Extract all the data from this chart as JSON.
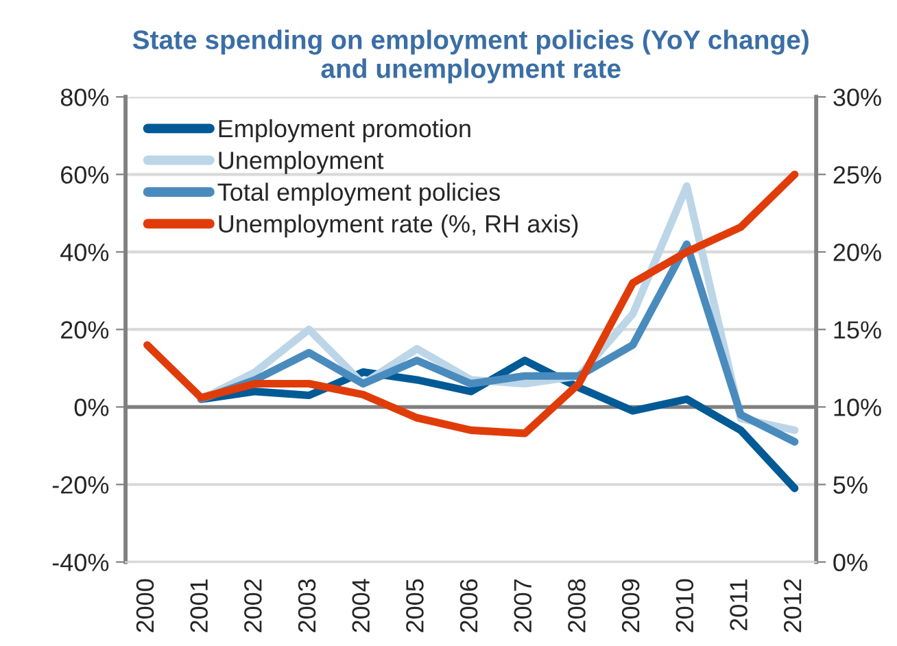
{
  "chart_data": {
    "type": "line",
    "title": "State spending on employment policies (YoY change)\nand unemployment rate",
    "categories": [
      "2000",
      "2001",
      "2002",
      "2003",
      "2004",
      "2005",
      "2006",
      "2007",
      "2008",
      "2009",
      "2010",
      "2011",
      "2012"
    ],
    "series": [
      {
        "name": "Employment promotion",
        "color": "#005a96",
        "values": [
          null,
          2,
          4,
          3,
          9,
          7,
          4,
          12,
          5,
          -1,
          2,
          -6,
          -21
        ]
      },
      {
        "name": "Unemployment",
        "color": "#bcd6e8",
        "values": [
          null,
          2,
          9,
          20,
          6,
          15,
          7,
          6,
          8,
          24,
          57,
          -3,
          -6
        ]
      },
      {
        "name": "Total employment policies",
        "color": "#4a8bbd",
        "values": [
          null,
          2,
          7,
          14,
          6,
          12,
          6,
          8,
          8,
          16,
          42,
          -2,
          -9
        ]
      },
      {
        "name": "Unemployment rate (%, RH axis)",
        "color": "#e03c0a",
        "axis": "y2",
        "values": [
          14,
          10.6,
          11.5,
          11.5,
          10.8,
          9.3,
          8.5,
          8.3,
          11.5,
          18,
          20,
          21.6,
          25
        ]
      }
    ],
    "ylim": [
      -40,
      80
    ],
    "yticks": [
      {
        "value": -40,
        "label": "-40%"
      },
      {
        "value": -20,
        "label": "-20%"
      },
      {
        "value": 0,
        "label": "0%"
      },
      {
        "value": 20,
        "label": "20%"
      },
      {
        "value": 40,
        "label": "40%"
      },
      {
        "value": 60,
        "label": "60%"
      },
      {
        "value": 80,
        "label": "80%"
      }
    ],
    "y2lim": [
      0,
      30
    ],
    "y2ticks": [
      {
        "value": 0,
        "label": "0%"
      },
      {
        "value": 5,
        "label": "5%"
      },
      {
        "value": 10,
        "label": "10%"
      },
      {
        "value": 15,
        "label": "15%"
      },
      {
        "value": 20,
        "label": "20%"
      },
      {
        "value": 25,
        "label": "25%"
      },
      {
        "value": 30,
        "label": "30%"
      }
    ],
    "ref_lines": [
      {
        "axis": "y",
        "value": 0,
        "color": "#808080"
      }
    ],
    "grid": "y",
    "legend": "top left",
    "line_style": "solid",
    "marker": "none"
  }
}
